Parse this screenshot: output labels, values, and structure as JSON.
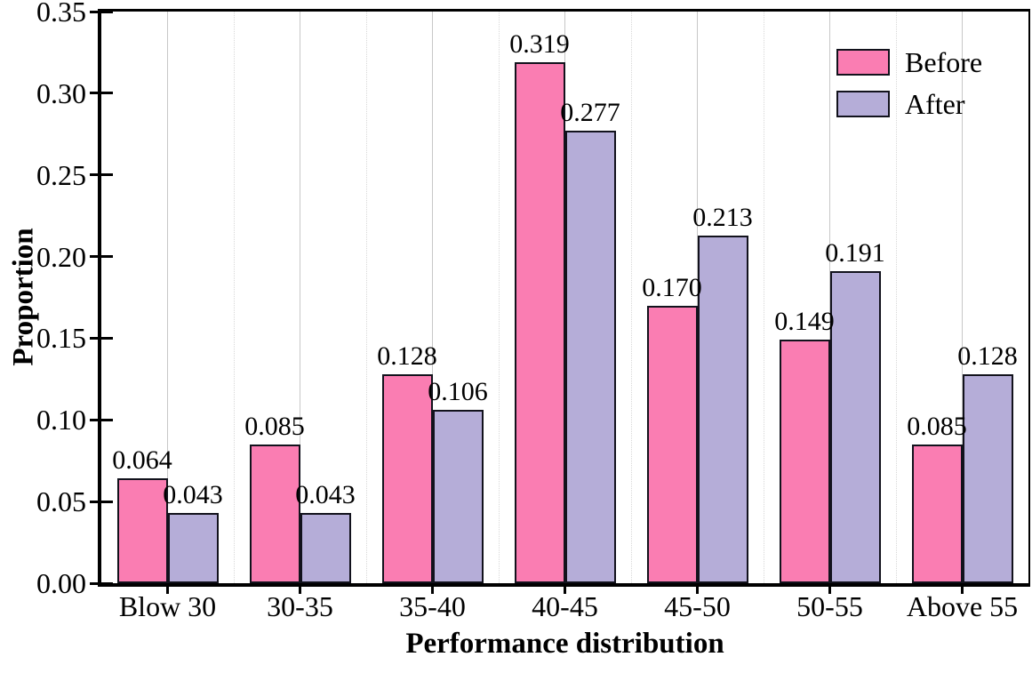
{
  "chart_data": {
    "type": "bar",
    "title": "",
    "xlabel": "Performance distribution",
    "ylabel": "Proportion",
    "categories": [
      "Blow 30",
      "30-35",
      "35-40",
      "40-45",
      "45-50",
      "50-55",
      "Above 55"
    ],
    "series": [
      {
        "name": "Before",
        "color": "#FA7DB2",
        "values": [
          0.064,
          0.085,
          0.128,
          0.319,
          0.17,
          0.149,
          0.085
        ]
      },
      {
        "name": "After",
        "color": "#B5ADD8",
        "values": [
          0.043,
          0.043,
          0.106,
          0.277,
          0.213,
          0.191,
          0.128
        ]
      }
    ],
    "ylim": [
      0,
      0.35
    ],
    "ytick_step": 0.05,
    "ytick_decimals": 2,
    "value_label_decimals": 3,
    "grid": "vertical",
    "gridline_solid_color": "#c7c7c7",
    "gridline_dotted_color": "#d8d8d8",
    "bar_edge_color": "#12121c",
    "axis_color": "#000000",
    "background_color": "#ffffff",
    "legend_position": "top-right"
  }
}
